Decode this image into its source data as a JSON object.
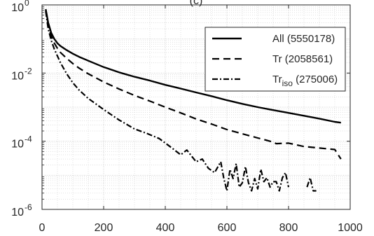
{
  "chart_data": {
    "type": "line",
    "title": "(c)",
    "xlabel": "",
    "ylabel": "",
    "xlim": [
      0,
      1000
    ],
    "ylim": [
      1e-06,
      1
    ],
    "yscale": "log",
    "grid": true,
    "minor_grid": true,
    "legend_position": "top-right",
    "xticks": [
      0,
      200,
      400,
      600,
      800,
      1000
    ],
    "yticks": [
      {
        "value": 1e-06,
        "base": "10",
        "exp": "-6"
      },
      {
        "value": 0.0001,
        "base": "10",
        "exp": "-4"
      },
      {
        "value": 0.01,
        "base": "10",
        "exp": "-2"
      },
      {
        "value": 1,
        "base": "10",
        "exp": "0"
      }
    ],
    "series": [
      {
        "name": "All (5550178)",
        "label_main": "All (5550178)",
        "label_sub": "",
        "label_rest": "",
        "style": "solid",
        "color": "#000000",
        "x": [
          12,
          20,
          30,
          40,
          50,
          60,
          80,
          100,
          120,
          150,
          200,
          250,
          300,
          350,
          400,
          450,
          500,
          550,
          600,
          650,
          700,
          750,
          800,
          850,
          900,
          950,
          970
        ],
        "y": [
          0.75,
          0.3,
          0.15,
          0.1,
          0.075,
          0.062,
          0.047,
          0.037,
          0.03,
          0.023,
          0.015,
          0.0105,
          0.0078,
          0.006,
          0.0045,
          0.0035,
          0.0027,
          0.0021,
          0.0016,
          0.00125,
          0.001,
          0.00082,
          0.00068,
          0.00056,
          0.00046,
          0.00037,
          0.00035
        ]
      },
      {
        "name": "Tr (2058561)",
        "label_main": "Tr (2058561)",
        "label_sub": "",
        "label_rest": "",
        "style": "dashed",
        "color": "#000000",
        "x": [
          12,
          20,
          30,
          40,
          50,
          60,
          80,
          100,
          120,
          150,
          200,
          250,
          300,
          350,
          400,
          450,
          500,
          550,
          600,
          650,
          700,
          750,
          760,
          800,
          850,
          900,
          950,
          970
        ],
        "y": [
          0.7,
          0.25,
          0.12,
          0.075,
          0.053,
          0.04,
          0.027,
          0.019,
          0.014,
          0.0095,
          0.0055,
          0.0034,
          0.0022,
          0.0015,
          0.001,
          0.00068,
          0.00045,
          0.00032,
          0.00022,
          0.000165,
          0.000125,
          9.5e-05,
          8.5e-05,
          8.8e-05,
          7e-05,
          6.3e-05,
          5.7e-05,
          3e-05
        ]
      },
      {
        "name": "Triso (275006)",
        "label_main": "Tr",
        "label_sub": "iso",
        "label_rest": " (275006)",
        "style": "dashdot",
        "color": "#000000",
        "x": [
          12,
          20,
          30,
          40,
          60,
          80,
          100,
          120,
          150,
          200,
          250,
          300,
          340,
          380,
          420,
          450,
          470,
          500,
          520,
          540,
          560,
          580,
          590,
          600,
          610,
          620,
          630,
          640,
          650,
          660,
          670,
          680,
          690,
          700,
          710,
          720,
          730,
          740,
          750,
          760,
          770,
          780,
          790,
          800,
          820,
          840,
          860,
          870,
          880,
          890
        ],
        "y": [
          0.65,
          0.2,
          0.09,
          0.05,
          0.02,
          0.0095,
          0.0052,
          0.0032,
          0.0018,
          0.00085,
          0.00042,
          0.00023,
          0.00017,
          0.00012,
          6.5e-05,
          4e-05,
          5.5e-05,
          2.5e-05,
          3e-05,
          1.6e-05,
          1.2e-05,
          2.5e-05,
          8e-06,
          3.5e-06,
          1.5e-05,
          8e-06,
          2.2e-05,
          4.5e-06,
          6e-06,
          1.8e-05,
          6e-06,
          3.5e-06,
          8e-06,
          4e-06,
          1.5e-05,
          6.5e-06,
          8.5e-06,
          4.5e-06,
          6.5e-06,
          6.5e-06,
          3.5e-06,
          8.5e-06,
          1.2e-05,
          4.5e-06,
          null,
          null,
          4.5e-06,
          8.5e-06,
          3.5e-06,
          3.5e-06
        ]
      }
    ]
  }
}
